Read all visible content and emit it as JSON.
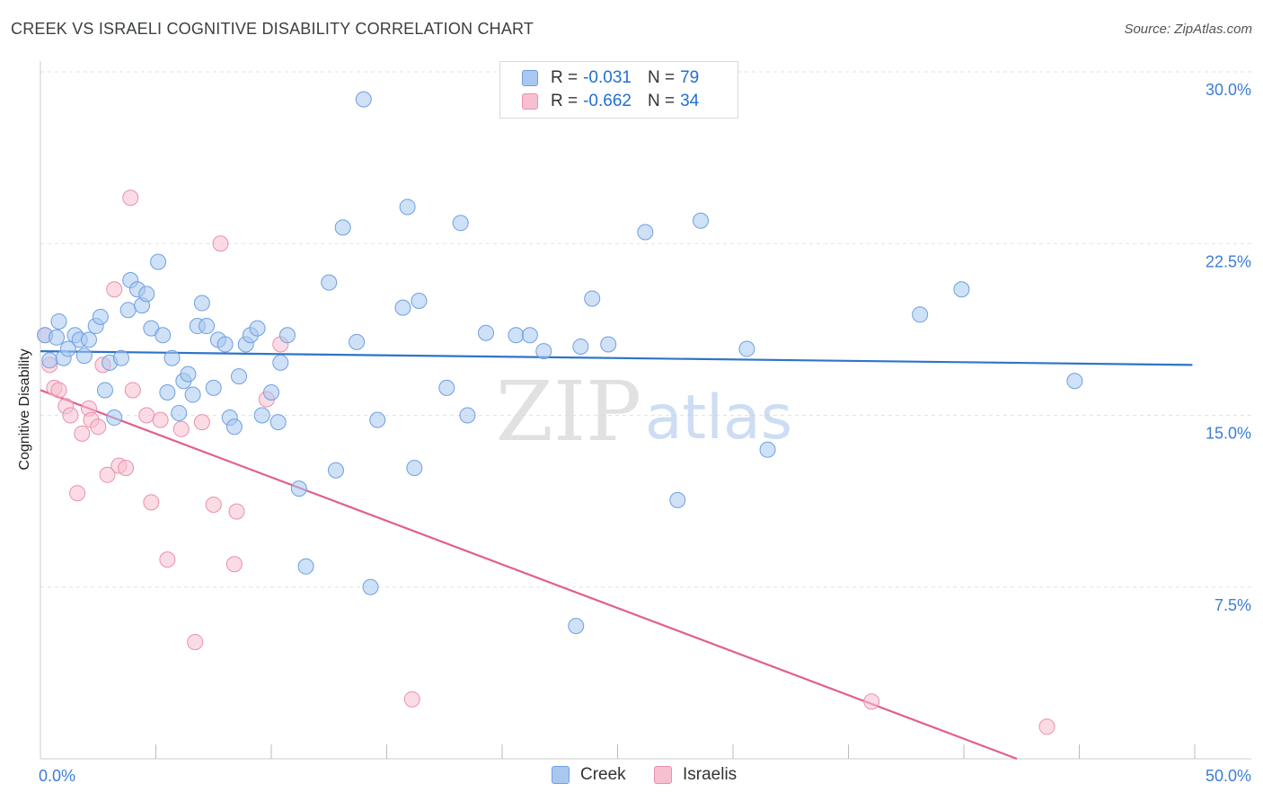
{
  "title": "CREEK VS ISRAELI COGNITIVE DISABILITY CORRELATION CHART",
  "source": "Source: ZipAtlas.com",
  "watermark": {
    "zip": "ZIP",
    "atlas": "atlas"
  },
  "legend": {
    "rows": [
      {
        "r_label": "R =",
        "r_value": "-0.031",
        "n_label": "N =",
        "n_value": "79",
        "color": "#a8c8f0",
        "border": "#6f9fe0"
      },
      {
        "r_label": "R =",
        "r_value": "-0.662",
        "n_label": "N =",
        "n_value": "34",
        "color": "#f7c0d0",
        "border": "#ea90ad"
      }
    ]
  },
  "bottom_legend": {
    "creek": "Creek",
    "israelis": "Israelis"
  },
  "chart_data": {
    "type": "scatter",
    "title": "CREEK VS ISRAELI COGNITIVE DISABILITY CORRELATION CHART",
    "xlabel": "",
    "ylabel": "Cognitive Disability",
    "xlim": [
      0,
      50
    ],
    "ylim": [
      0,
      30
    ],
    "x_tick_labels": [
      "0.0%",
      "50.0%"
    ],
    "y_ticks": [
      7.5,
      15.0,
      22.5,
      30.0
    ],
    "y_tick_labels": [
      "7.5%",
      "15.0%",
      "22.5%",
      "30.0%"
    ],
    "grid": true,
    "legend_position": "top-center",
    "series": [
      {
        "name": "Creek",
        "color": "#a8c8f0",
        "stroke": "#6f9fe0",
        "trend_color": "#2f74c8",
        "trend": {
          "x": [
            0,
            49.9
          ],
          "y": [
            17.8,
            17.2
          ]
        },
        "points": [
          [
            0.2,
            18.5
          ],
          [
            0.4,
            17.4
          ],
          [
            0.7,
            18.4
          ],
          [
            0.8,
            19.1
          ],
          [
            1.0,
            17.5
          ],
          [
            1.2,
            17.9
          ],
          [
            1.5,
            18.5
          ],
          [
            1.7,
            18.3
          ],
          [
            1.9,
            17.6
          ],
          [
            2.1,
            18.3
          ],
          [
            2.4,
            18.9
          ],
          [
            2.6,
            19.3
          ],
          [
            2.8,
            16.1
          ],
          [
            3.0,
            17.3
          ],
          [
            3.2,
            14.9
          ],
          [
            3.5,
            17.5
          ],
          [
            3.8,
            19.6
          ],
          [
            3.9,
            20.9
          ],
          [
            4.2,
            20.5
          ],
          [
            4.4,
            19.8
          ],
          [
            4.6,
            20.3
          ],
          [
            4.8,
            18.8
          ],
          [
            5.1,
            21.7
          ],
          [
            5.3,
            18.5
          ],
          [
            5.5,
            16.0
          ],
          [
            5.7,
            17.5
          ],
          [
            6.0,
            15.1
          ],
          [
            6.2,
            16.5
          ],
          [
            6.4,
            16.8
          ],
          [
            6.6,
            15.9
          ],
          [
            6.8,
            18.9
          ],
          [
            7.0,
            19.9
          ],
          [
            7.2,
            18.9
          ],
          [
            7.5,
            16.2
          ],
          [
            7.7,
            18.3
          ],
          [
            8.0,
            18.1
          ],
          [
            8.2,
            14.9
          ],
          [
            8.4,
            14.5
          ],
          [
            8.6,
            16.7
          ],
          [
            8.9,
            18.1
          ],
          [
            9.1,
            18.5
          ],
          [
            9.4,
            18.8
          ],
          [
            9.6,
            15.0
          ],
          [
            10.0,
            16.0
          ],
          [
            10.3,
            14.7
          ],
          [
            10.4,
            17.3
          ],
          [
            10.7,
            18.5
          ],
          [
            11.2,
            11.8
          ],
          [
            11.5,
            8.4
          ],
          [
            12.5,
            20.8
          ],
          [
            12.8,
            12.6
          ],
          [
            13.1,
            23.2
          ],
          [
            13.7,
            18.2
          ],
          [
            14.0,
            28.8
          ],
          [
            14.3,
            7.5
          ],
          [
            14.6,
            14.8
          ],
          [
            15.7,
            19.7
          ],
          [
            15.9,
            24.1
          ],
          [
            16.2,
            12.7
          ],
          [
            16.4,
            20.0
          ],
          [
            17.6,
            16.2
          ],
          [
            18.2,
            23.4
          ],
          [
            18.5,
            15.0
          ],
          [
            19.3,
            18.6
          ],
          [
            20.6,
            18.5
          ],
          [
            21.2,
            18.5
          ],
          [
            21.8,
            17.8
          ],
          [
            23.2,
            5.8
          ],
          [
            23.4,
            18.0
          ],
          [
            23.9,
            20.1
          ],
          [
            24.6,
            18.1
          ],
          [
            26.2,
            23.0
          ],
          [
            27.6,
            11.3
          ],
          [
            28.6,
            23.5
          ],
          [
            30.6,
            17.9
          ],
          [
            31.5,
            13.5
          ],
          [
            38.1,
            19.4
          ],
          [
            39.9,
            20.5
          ],
          [
            44.8,
            16.5
          ]
        ]
      },
      {
        "name": "Israelis",
        "color": "#f7c0d0",
        "stroke": "#ea90ad",
        "trend_color": "#e0608e",
        "trend": {
          "x": [
            0,
            42.3
          ],
          "y": [
            16.1,
            0
          ]
        },
        "points": [
          [
            0.2,
            18.5
          ],
          [
            0.4,
            17.2
          ],
          [
            0.6,
            16.2
          ],
          [
            0.8,
            16.1
          ],
          [
            1.1,
            15.4
          ],
          [
            1.3,
            15.0
          ],
          [
            1.6,
            11.6
          ],
          [
            1.8,
            14.2
          ],
          [
            2.1,
            15.3
          ],
          [
            2.2,
            14.8
          ],
          [
            2.5,
            14.5
          ],
          [
            2.7,
            17.2
          ],
          [
            2.9,
            12.4
          ],
          [
            3.2,
            20.5
          ],
          [
            3.4,
            12.8
          ],
          [
            3.7,
            12.7
          ],
          [
            3.9,
            24.5
          ],
          [
            4.0,
            16.1
          ],
          [
            4.6,
            15.0
          ],
          [
            4.8,
            11.2
          ],
          [
            5.2,
            14.8
          ],
          [
            5.5,
            8.7
          ],
          [
            6.1,
            14.4
          ],
          [
            6.7,
            5.1
          ],
          [
            7.0,
            14.7
          ],
          [
            7.5,
            11.1
          ],
          [
            7.8,
            22.5
          ],
          [
            8.4,
            8.5
          ],
          [
            8.5,
            10.8
          ],
          [
            9.8,
            15.7
          ],
          [
            10.4,
            18.1
          ],
          [
            16.1,
            2.6
          ],
          [
            36.0,
            2.5
          ],
          [
            43.6,
            1.4
          ]
        ]
      }
    ]
  }
}
